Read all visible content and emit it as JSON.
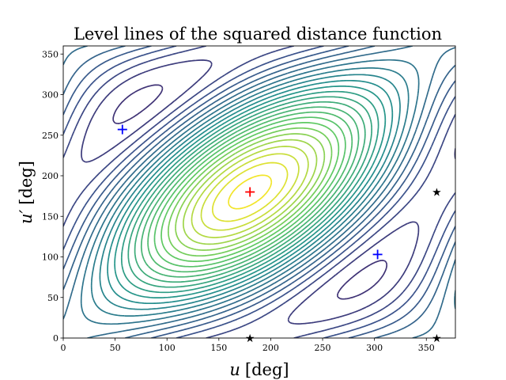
{
  "chart_data": {
    "type": "contour",
    "title": "Level lines of the squared distance function",
    "xlabel_var": "u",
    "xlabel_unit": "[deg]",
    "ylabel_var": "u′",
    "ylabel_unit": "[deg]",
    "xlim": [
      0,
      378
    ],
    "ylim": [
      0,
      360
    ],
    "xticks": [
      0,
      50,
      100,
      150,
      200,
      250,
      300,
      350
    ],
    "yticks": [
      0,
      50,
      100,
      150,
      200,
      250,
      300,
      350
    ],
    "grid": false,
    "colormap": "viridis",
    "colormap_stops": [
      "#440154",
      "#3b528b",
      "#21918c",
      "#5ec962",
      "#fde725"
    ],
    "level_count": 30,
    "contour_center": [
      180,
      180
    ],
    "markers": [
      {
        "name": "minimum-1",
        "x": 57,
        "y": 257,
        "symbol": "+",
        "color": "#0000ff"
      },
      {
        "name": "minimum-2",
        "x": 303,
        "y": 103,
        "symbol": "+",
        "color": "#0000ff"
      },
      {
        "name": "maximum",
        "x": 180,
        "y": 180,
        "symbol": "+",
        "color": "#ff0000"
      },
      {
        "name": "star-1",
        "x": 360,
        "y": 180,
        "symbol": "★",
        "color": "#000000"
      },
      {
        "name": "star-2",
        "x": 180,
        "y": 0,
        "symbol": "★",
        "color": "#000000"
      },
      {
        "name": "star-3",
        "x": 360,
        "y": 0,
        "symbol": "★",
        "color": "#000000"
      }
    ]
  }
}
